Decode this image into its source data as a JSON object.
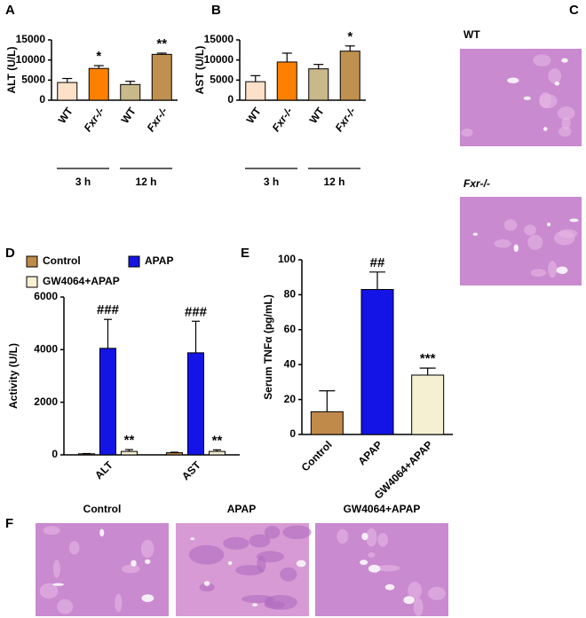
{
  "panel_labels": [
    "A",
    "B",
    "C",
    "D",
    "E",
    "F"
  ],
  "images": {
    "C": [
      "WT",
      "Fxr-/-"
    ],
    "F": [
      "Control",
      "APAP",
      "GW4064+APAP"
    ]
  },
  "chart_data": [
    {
      "type": "bar",
      "y_label": "ALT (U/L)",
      "categories": [
        "WT",
        "Fxr-/-",
        "WT",
        "Fxr-/-"
      ],
      "groups": [
        "3 h",
        "12 h"
      ],
      "values": [
        4400,
        7900,
        3900,
        11400
      ],
      "errors": [
        1000,
        700,
        800,
        300
      ],
      "colors": [
        "#fde0c8",
        "#ff8000",
        "#c8b98a",
        "#c09050"
      ],
      "annotations": [
        null,
        "*",
        null,
        "**"
      ],
      "ylim": [
        0,
        15000
      ],
      "yticks": [
        0,
        5000,
        10000,
        15000
      ]
    },
    {
      "type": "bar",
      "y_label": "AST (U/L)",
      "categories": [
        "WT",
        "Fxr-/-",
        "WT",
        "Fxr-/-"
      ],
      "groups": [
        "3 h",
        "12 h"
      ],
      "values": [
        4600,
        9500,
        7800,
        12200
      ],
      "errors": [
        1500,
        2200,
        1100,
        1300
      ],
      "colors": [
        "#fde0c8",
        "#ff8000",
        "#c8b98a",
        "#c09050"
      ],
      "annotations": [
        null,
        null,
        null,
        "*"
      ],
      "ylim": [
        0,
        15000
      ],
      "yticks": [
        0,
        5000,
        10000,
        15000
      ]
    },
    {
      "type": "grouped_bar",
      "y_label": "Activity (U/L)",
      "categories": [
        "ALT",
        "AST"
      ],
      "series": [
        {
          "name": "Control",
          "color": "#c08a4a",
          "values": [
            40,
            80
          ],
          "errors": [
            10,
            20
          ],
          "annotations": [
            null,
            null
          ]
        },
        {
          "name": "APAP",
          "color": "#1414e6",
          "values": [
            4050,
            3880
          ],
          "errors": [
            1100,
            1200
          ],
          "annotations": [
            "###",
            "###"
          ]
        },
        {
          "name": "GW4064+APAP",
          "color": "#f5f0d2",
          "values": [
            130,
            130
          ],
          "errors": [
            70,
            60
          ],
          "annotations": [
            "**",
            "**"
          ]
        }
      ],
      "ylim": [
        0,
        6000
      ],
      "yticks": [
        0,
        2000,
        4000,
        6000
      ]
    },
    {
      "type": "bar",
      "y_label": "Serum TNFα (pg/mL)",
      "categories": [
        "Control",
        "APAP",
        "GW4064+APAP"
      ],
      "values": [
        13,
        83,
        34
      ],
      "errors": [
        12,
        10,
        4
      ],
      "colors": [
        "#c08a4a",
        "#1414e6",
        "#f5f0d2"
      ],
      "annotations": [
        null,
        "##",
        "***"
      ],
      "ylim": [
        0,
        100
      ],
      "yticks": [
        0,
        20,
        40,
        60,
        80,
        100
      ]
    }
  ]
}
